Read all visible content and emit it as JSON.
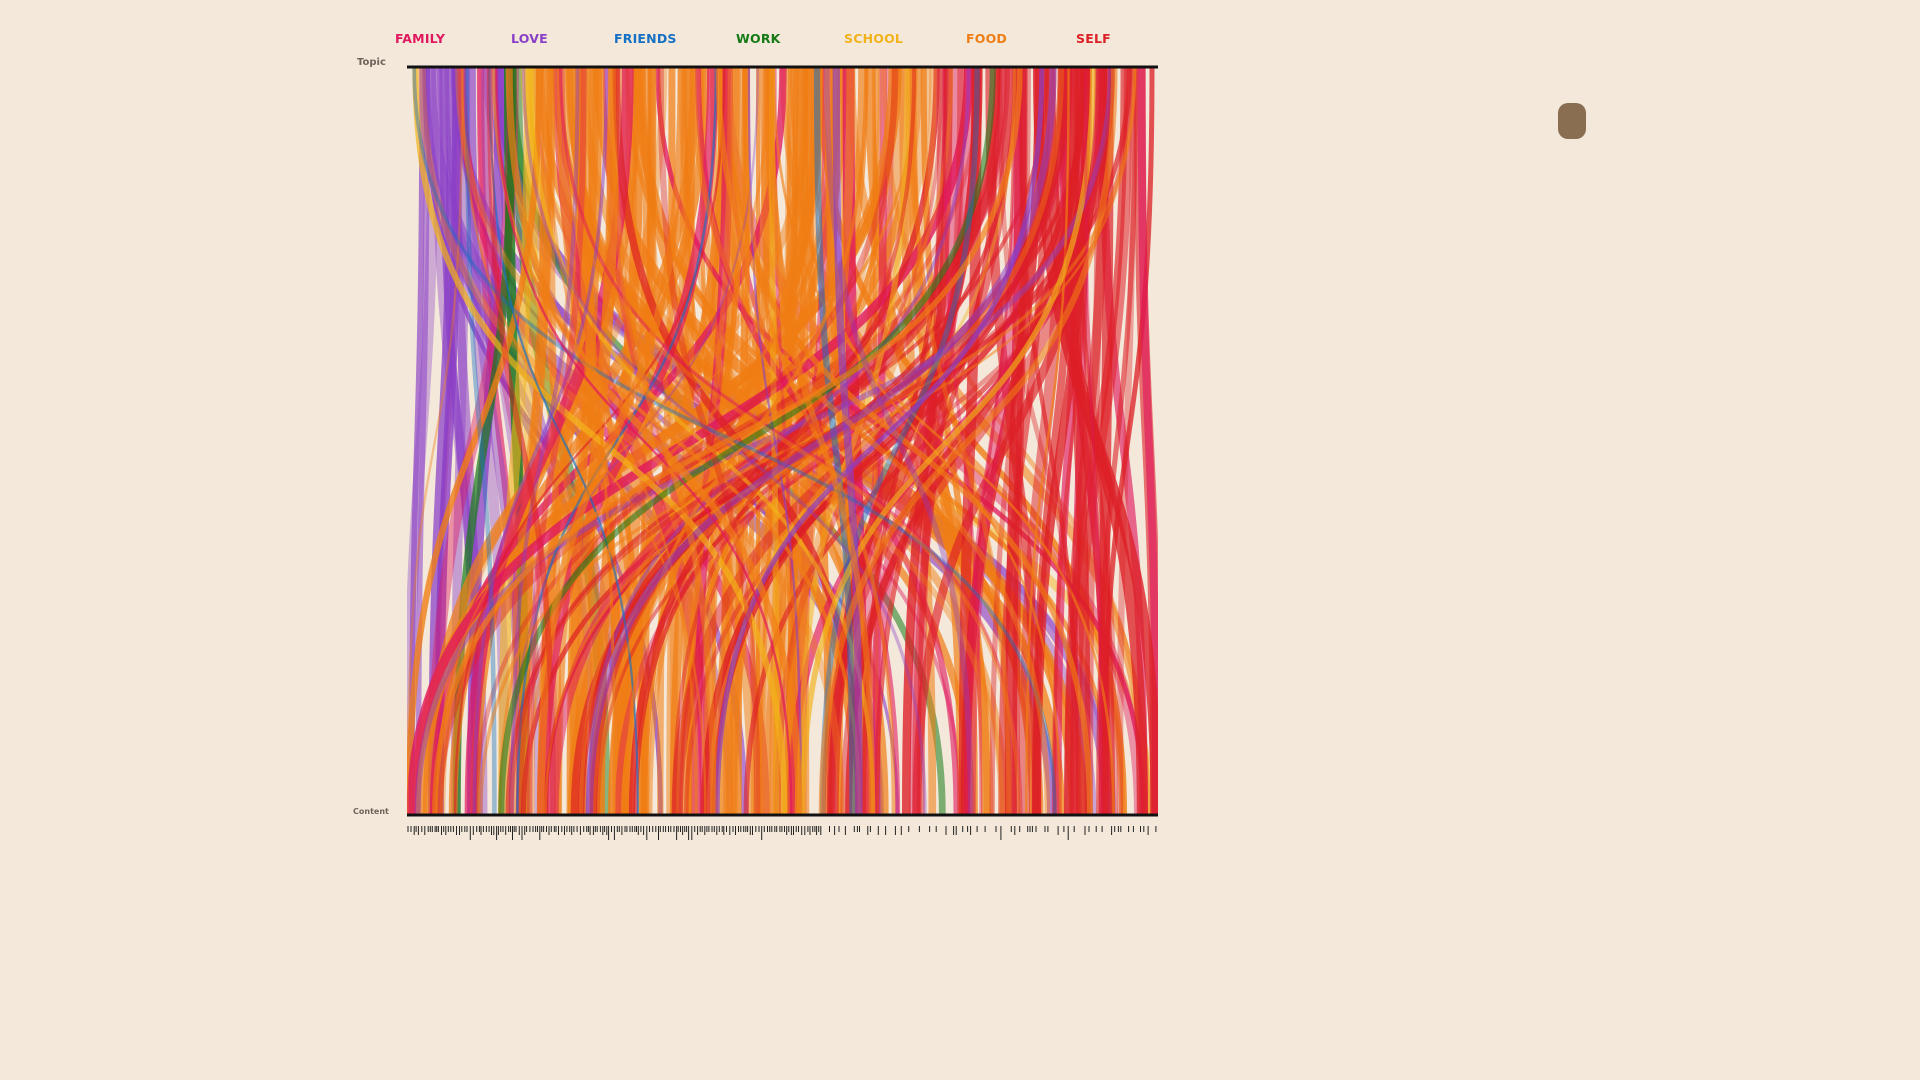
{
  "legend": {
    "items": [
      {
        "label": "FAMILY",
        "color": "#e0185e"
      },
      {
        "label": "LOVE",
        "color": "#8a3fc7"
      },
      {
        "label": "FRIENDS",
        "color": "#1670c4"
      },
      {
        "label": "WORK",
        "color": "#157a16"
      },
      {
        "label": "SCHOOL",
        "color": "#f2b21a"
      },
      {
        "label": "FOOD",
        "color": "#f07d14"
      },
      {
        "label": "SELF",
        "color": "#dd1f26"
      }
    ]
  },
  "axis": {
    "top_label": "Topic",
    "bottom_label": "Content"
  },
  "chart_data": {
    "type": "parallel-sets",
    "title": "",
    "top_axis": "Topic",
    "bottom_axis": "Content",
    "categories": [
      "FAMILY",
      "LOVE",
      "FRIENDS",
      "WORK",
      "SCHOOL",
      "FOOD",
      "SELF"
    ],
    "top_order": [
      "LOVE",
      "WORK",
      "SCHOOL",
      "FOOD",
      "SELF"
    ],
    "approx_share_top": {
      "LOVE": 0.13,
      "WORK": 0.02,
      "SCHOOL": 0.02,
      "FOOD": 0.53,
      "SELF": 0.3
    },
    "colors": {
      "FAMILY": "#e0185e",
      "LOVE": "#8a3fc7",
      "FRIENDS": "#1670c4",
      "WORK": "#157a16",
      "SCHOOL": "#f2b21a",
      "FOOD": "#f07d14",
      "SELF": "#dd1f26"
    },
    "grid": false,
    "legend_position": "top"
  }
}
